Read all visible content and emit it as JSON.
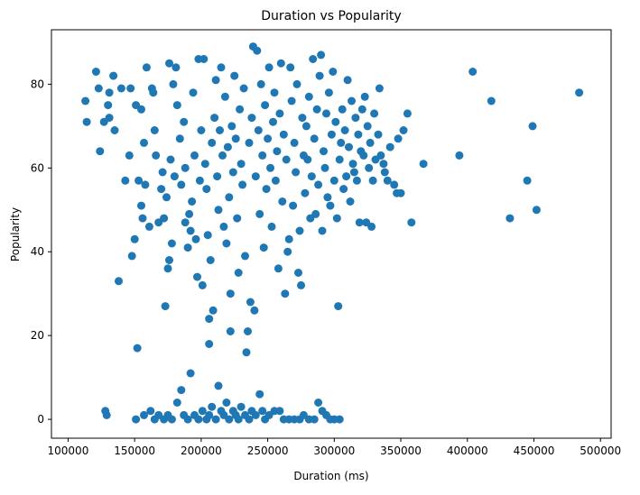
{
  "chart_data": {
    "type": "scatter",
    "title": "Duration vs Popularity",
    "xlabel": "Duration (ms)",
    "ylabel": "Popularity",
    "xlim": [
      87500,
      508000
    ],
    "ylim": [
      -4.5,
      93
    ],
    "xticks": [
      100000,
      150000,
      200000,
      250000,
      300000,
      350000,
      400000,
      450000,
      500000
    ],
    "yticks": [
      0,
      20,
      40,
      60,
      80
    ],
    "grid": false,
    "legend": "none",
    "marker_color": "#1f77b4",
    "points": [
      [
        113000,
        76
      ],
      [
        114000,
        71
      ],
      [
        121000,
        83
      ],
      [
        123000,
        79
      ],
      [
        124000,
        64
      ],
      [
        127000,
        71
      ],
      [
        130000,
        75
      ],
      [
        131000,
        72
      ],
      [
        131000,
        78
      ],
      [
        134000,
        82
      ],
      [
        135000,
        69
      ],
      [
        138000,
        33
      ],
      [
        140000,
        79
      ],
      [
        143000,
        57
      ],
      [
        146000,
        63
      ],
      [
        147000,
        79
      ],
      [
        148000,
        39
      ],
      [
        150000,
        43
      ],
      [
        151000,
        75
      ],
      [
        152000,
        17
      ],
      [
        153000,
        57
      ],
      [
        155000,
        74
      ],
      [
        155000,
        51
      ],
      [
        156000,
        48
      ],
      [
        157000,
        66
      ],
      [
        158000,
        56
      ],
      [
        159000,
        84
      ],
      [
        161000,
        46
      ],
      [
        163000,
        79
      ],
      [
        164000,
        78
      ],
      [
        165000,
        69
      ],
      [
        166000,
        63
      ],
      [
        168000,
        47
      ],
      [
        170000,
        55
      ],
      [
        171000,
        59
      ],
      [
        172000,
        48
      ],
      [
        173000,
        27
      ],
      [
        174000,
        53
      ],
      [
        175000,
        36
      ],
      [
        176000,
        38
      ],
      [
        177000,
        62
      ],
      [
        178000,
        42
      ],
      [
        176000,
        85
      ],
      [
        179000,
        80
      ],
      [
        180000,
        58
      ],
      [
        181000,
        84
      ],
      [
        182000,
        75
      ],
      [
        184000,
        67
      ],
      [
        185000,
        56
      ],
      [
        187000,
        71
      ],
      [
        188000,
        60
      ],
      [
        188000,
        47
      ],
      [
        190000,
        41
      ],
      [
        191000,
        49
      ],
      [
        192000,
        45
      ],
      [
        193000,
        52
      ],
      [
        194000,
        78
      ],
      [
        195000,
        63
      ],
      [
        196000,
        43
      ],
      [
        197000,
        34
      ],
      [
        198000,
        86
      ],
      [
        199000,
        57
      ],
      [
        200000,
        69
      ],
      [
        201000,
        32
      ],
      [
        202000,
        86
      ],
      [
        203000,
        61
      ],
      [
        204000,
        55
      ],
      [
        205000,
        44
      ],
      [
        206000,
        18
      ],
      [
        206000,
        24
      ],
      [
        207000,
        38
      ],
      [
        208000,
        66
      ],
      [
        209000,
        26
      ],
      [
        210000,
        72
      ],
      [
        211000,
        81
      ],
      [
        212000,
        58
      ],
      [
        213000,
        50
      ],
      [
        214000,
        69
      ],
      [
        215000,
        84
      ],
      [
        216000,
        63
      ],
      [
        217000,
        46
      ],
      [
        218000,
        77
      ],
      [
        219000,
        42
      ],
      [
        220000,
        65
      ],
      [
        221000,
        53
      ],
      [
        222000,
        30
      ],
      [
        222000,
        21
      ],
      [
        223000,
        70
      ],
      [
        224000,
        59
      ],
      [
        225000,
        82
      ],
      [
        226000,
        67
      ],
      [
        227000,
        48
      ],
      [
        228000,
        35
      ],
      [
        229000,
        74
      ],
      [
        230000,
        61
      ],
      [
        231000,
        56
      ],
      [
        232000,
        79
      ],
      [
        233000,
        39
      ],
      [
        234000,
        16
      ],
      [
        235000,
        21
      ],
      [
        236000,
        66
      ],
      [
        237000,
        28
      ],
      [
        238000,
        72
      ],
      [
        239000,
        89
      ],
      [
        240000,
        26
      ],
      [
        241000,
        58
      ],
      [
        242000,
        88
      ],
      [
        243000,
        69
      ],
      [
        244000,
        49
      ],
      [
        245000,
        80
      ],
      [
        246000,
        63
      ],
      [
        247000,
        41
      ],
      [
        248000,
        75
      ],
      [
        249000,
        55
      ],
      [
        250000,
        67
      ],
      [
        251000,
        84
      ],
      [
        252000,
        60
      ],
      [
        253000,
        46
      ],
      [
        254000,
        71
      ],
      [
        255000,
        78
      ],
      [
        256000,
        57
      ],
      [
        257000,
        64
      ],
      [
        258000,
        36
      ],
      [
        259000,
        73
      ],
      [
        260000,
        85
      ],
      [
        261000,
        52
      ],
      [
        262000,
        68
      ],
      [
        263000,
        30
      ],
      [
        264000,
        62
      ],
      [
        265000,
        40
      ],
      [
        266000,
        43
      ],
      [
        267000,
        84
      ],
      [
        268000,
        76
      ],
      [
        269000,
        51
      ],
      [
        270000,
        66
      ],
      [
        271000,
        59
      ],
      [
        272000,
        80
      ],
      [
        273000,
        35
      ],
      [
        274000,
        45
      ],
      [
        275000,
        32
      ],
      [
        276000,
        72
      ],
      [
        277000,
        63
      ],
      [
        278000,
        54
      ],
      [
        279000,
        70
      ],
      [
        280000,
        62
      ],
      [
        281000,
        77
      ],
      [
        282000,
        48
      ],
      [
        283000,
        58
      ],
      [
        284000,
        86
      ],
      [
        285000,
        67
      ],
      [
        286000,
        49
      ],
      [
        287000,
        74
      ],
      [
        288000,
        56
      ],
      [
        289000,
        82
      ],
      [
        290000,
        87
      ],
      [
        291000,
        45
      ],
      [
        292000,
        64
      ],
      [
        293000,
        60
      ],
      [
        294000,
        73
      ],
      [
        295000,
        53
      ],
      [
        296000,
        78
      ],
      [
        297000,
        51
      ],
      [
        298000,
        68
      ],
      [
        299000,
        83
      ],
      [
        300000,
        57
      ],
      [
        301000,
        71
      ],
      [
        302000,
        48
      ],
      [
        303000,
        27
      ],
      [
        304000,
        62
      ],
      [
        305000,
        66
      ],
      [
        306000,
        74
      ],
      [
        307000,
        55
      ],
      [
        308000,
        69
      ],
      [
        309000,
        58
      ],
      [
        310000,
        81
      ],
      [
        311000,
        65
      ],
      [
        312000,
        52
      ],
      [
        313000,
        76
      ],
      [
        314000,
        61
      ],
      [
        315000,
        59
      ],
      [
        316000,
        72
      ],
      [
        317000,
        57
      ],
      [
        318000,
        68
      ],
      [
        319000,
        47
      ],
      [
        320000,
        64
      ],
      [
        321000,
        74
      ],
      [
        322000,
        63
      ],
      [
        323000,
        77
      ],
      [
        324000,
        47
      ],
      [
        325000,
        70
      ],
      [
        326000,
        60
      ],
      [
        327000,
        66
      ],
      [
        328000,
        46
      ],
      [
        329000,
        57
      ],
      [
        330000,
        73
      ],
      [
        331000,
        62
      ],
      [
        333000,
        68
      ],
      [
        334000,
        79
      ],
      [
        335000,
        63
      ],
      [
        337000,
        61
      ],
      [
        338000,
        59
      ],
      [
        340000,
        57
      ],
      [
        342000,
        65
      ],
      [
        345000,
        56
      ],
      [
        347000,
        54
      ],
      [
        348000,
        67
      ],
      [
        350000,
        54
      ],
      [
        352000,
        69
      ],
      [
        355000,
        73
      ],
      [
        358000,
        47
      ],
      [
        367000,
        61
      ],
      [
        394000,
        63
      ],
      [
        404000,
        83
      ],
      [
        418000,
        76
      ],
      [
        432000,
        48
      ],
      [
        445000,
        57
      ],
      [
        449000,
        70
      ],
      [
        452000,
        50
      ],
      [
        484000,
        78
      ],
      [
        128000,
        2
      ],
      [
        129000,
        1
      ],
      [
        151000,
        0
      ],
      [
        157000,
        1
      ],
      [
        162000,
        2
      ],
      [
        165000,
        0
      ],
      [
        168000,
        1
      ],
      [
        172000,
        0
      ],
      [
        175000,
        1
      ],
      [
        178000,
        0
      ],
      [
        182000,
        4
      ],
      [
        185000,
        7
      ],
      [
        187000,
        1
      ],
      [
        190000,
        0
      ],
      [
        192000,
        11
      ],
      [
        195000,
        1
      ],
      [
        198000,
        0
      ],
      [
        201000,
        2
      ],
      [
        204000,
        0
      ],
      [
        206000,
        1
      ],
      [
        208000,
        3
      ],
      [
        211000,
        0
      ],
      [
        213000,
        8
      ],
      [
        215000,
        2
      ],
      [
        217000,
        1
      ],
      [
        219000,
        4
      ],
      [
        221000,
        0
      ],
      [
        224000,
        2
      ],
      [
        226000,
        1
      ],
      [
        228000,
        0
      ],
      [
        230000,
        3
      ],
      [
        233000,
        1
      ],
      [
        236000,
        0
      ],
      [
        238000,
        2
      ],
      [
        241000,
        1
      ],
      [
        244000,
        6
      ],
      [
        246000,
        2
      ],
      [
        248000,
        0
      ],
      [
        251000,
        1
      ],
      [
        255000,
        2
      ],
      [
        259000,
        2
      ],
      [
        262000,
        0
      ],
      [
        266000,
        0
      ],
      [
        270000,
        0
      ],
      [
        274000,
        0
      ],
      [
        277000,
        1
      ],
      [
        281000,
        0
      ],
      [
        285000,
        0
      ],
      [
        288000,
        4
      ],
      [
        291000,
        2
      ],
      [
        294000,
        1
      ],
      [
        297000,
        0
      ],
      [
        300000,
        0
      ],
      [
        304000,
        0
      ]
    ]
  }
}
